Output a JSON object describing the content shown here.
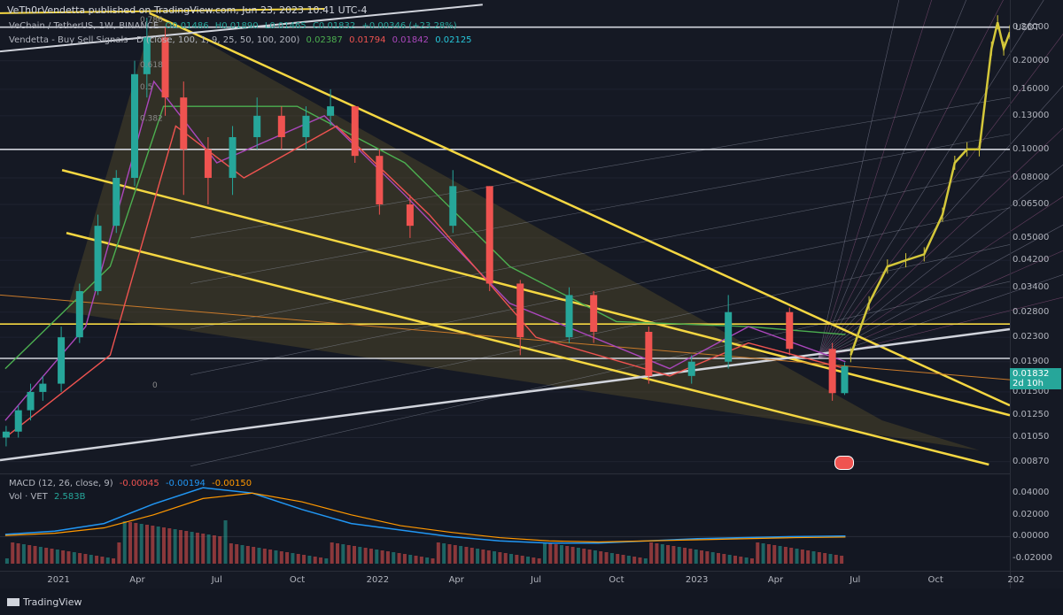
{
  "header": {
    "published_line": "VeTh0rVendetta published on TradingView.com, Jun 23, 2023 10:41 UTC-4"
  },
  "legend": {
    "symbol": "VeChain / TetherUS, 1W, BINANCE",
    "open": "O0.01486",
    "high": "H0.01890",
    "low": "L0.01465",
    "close": "C0.01832",
    "change": "+0.00346 (+23.28%)",
    "indicator_name": "Vendetta - Buy Sell Signals · D (close, 100, 1, 9, 25, 50, 100, 200)",
    "indicator_values": [
      "0.02387",
      "0.01794",
      "0.01842",
      "0.02125"
    ],
    "macd_name": "MACD (12, 26, close, 9)",
    "macd_values": [
      "-0.00045",
      "-0.00194",
      "-0.00150"
    ],
    "vol_name": "Vol · VET",
    "vol_value": "2.583B"
  },
  "axis": {
    "currency": "USDT",
    "price_ticks": [
      "0.26000",
      "0.20000",
      "0.16000",
      "0.13000",
      "0.10000",
      "0.08000",
      "0.06500",
      "0.05000",
      "0.04200",
      "0.03400",
      "0.02800",
      "0.02300",
      "0.01900",
      "0.01500",
      "0.01250",
      "0.01050",
      "0.00870"
    ],
    "current_price": "0.01832",
    "countdown": "2d 10h",
    "macd_ticks": [
      "0.04000",
      "0.02000",
      "0.00000",
      "-0.02000"
    ],
    "date_ticks": [
      "2021",
      "Apr",
      "Jul",
      "Oct",
      "2022",
      "Apr",
      "Jul",
      "Oct",
      "2023",
      "Apr",
      "Jul",
      "Oct",
      "202"
    ]
  },
  "fib_labels": [
    "0.786",
    "0.618",
    "0.5",
    "0.382",
    "0"
  ],
  "footer": {
    "brand": "TradingView"
  },
  "colors": {
    "background": "#151924",
    "up": "#26a69a",
    "down": "#ef5350",
    "channel": "#f5d742",
    "projection": "#d4c73a",
    "macd": "#2196f3",
    "signal": "#ff9800"
  },
  "chart_data": {
    "type": "candlestick",
    "symbol": "VET/USDT",
    "interval": "1W",
    "y_scale": "log",
    "ylim": [
      0.0085,
      0.3
    ],
    "xlim": [
      "2020-10-26",
      "2023-12-25"
    ],
    "candles": [
      {
        "t": "2020-11-02",
        "o": 0.0105,
        "h": 0.0115,
        "l": 0.0098,
        "c": 0.011
      },
      {
        "t": "2020-11-16",
        "o": 0.011,
        "h": 0.0135,
        "l": 0.0105,
        "c": 0.013
      },
      {
        "t": "2020-11-30",
        "o": 0.013,
        "h": 0.016,
        "l": 0.012,
        "c": 0.015
      },
      {
        "t": "2020-12-14",
        "o": 0.015,
        "h": 0.017,
        "l": 0.014,
        "c": 0.016
      },
      {
        "t": "2021-01-04",
        "o": 0.016,
        "h": 0.025,
        "l": 0.015,
        "c": 0.023
      },
      {
        "t": "2021-01-25",
        "o": 0.023,
        "h": 0.035,
        "l": 0.022,
        "c": 0.033
      },
      {
        "t": "2021-02-15",
        "o": 0.033,
        "h": 0.06,
        "l": 0.032,
        "c": 0.055
      },
      {
        "t": "2021-03-08",
        "o": 0.055,
        "h": 0.085,
        "l": 0.052,
        "c": 0.08
      },
      {
        "t": "2021-03-29",
        "o": 0.08,
        "h": 0.2,
        "l": 0.075,
        "c": 0.18
      },
      {
        "t": "2021-04-12",
        "o": 0.18,
        "h": 0.28,
        "l": 0.15,
        "c": 0.24
      },
      {
        "t": "2021-05-03",
        "o": 0.24,
        "h": 0.26,
        "l": 0.13,
        "c": 0.15
      },
      {
        "t": "2021-05-24",
        "o": 0.15,
        "h": 0.17,
        "l": 0.07,
        "c": 0.1
      },
      {
        "t": "2021-06-21",
        "o": 0.1,
        "h": 0.11,
        "l": 0.065,
        "c": 0.08
      },
      {
        "t": "2021-07-19",
        "o": 0.08,
        "h": 0.12,
        "l": 0.07,
        "c": 0.11
      },
      {
        "t": "2021-08-16",
        "o": 0.11,
        "h": 0.15,
        "l": 0.1,
        "c": 0.13
      },
      {
        "t": "2021-09-13",
        "o": 0.13,
        "h": 0.14,
        "l": 0.1,
        "c": 0.11
      },
      {
        "t": "2021-10-11",
        "o": 0.11,
        "h": 0.14,
        "l": 0.1,
        "c": 0.13
      },
      {
        "t": "2021-11-08",
        "o": 0.13,
        "h": 0.16,
        "l": 0.12,
        "c": 0.14
      },
      {
        "t": "2021-12-06",
        "o": 0.14,
        "h": 0.14,
        "l": 0.09,
        "c": 0.095
      },
      {
        "t": "2022-01-03",
        "o": 0.095,
        "h": 0.1,
        "l": 0.06,
        "c": 0.065
      },
      {
        "t": "2022-02-07",
        "o": 0.065,
        "h": 0.07,
        "l": 0.05,
        "c": 0.055
      },
      {
        "t": "2022-03-28",
        "o": 0.055,
        "h": 0.085,
        "l": 0.052,
        "c": 0.075
      },
      {
        "t": "2022-05-09",
        "o": 0.075,
        "h": 0.075,
        "l": 0.033,
        "c": 0.035
      },
      {
        "t": "2022-06-13",
        "o": 0.035,
        "h": 0.036,
        "l": 0.02,
        "c": 0.023
      },
      {
        "t": "2022-08-08",
        "o": 0.023,
        "h": 0.034,
        "l": 0.022,
        "c": 0.032
      },
      {
        "t": "2022-09-05",
        "o": 0.032,
        "h": 0.033,
        "l": 0.022,
        "c": 0.024
      },
      {
        "t": "2022-11-07",
        "o": 0.024,
        "h": 0.025,
        "l": 0.016,
        "c": 0.017
      },
      {
        "t": "2022-12-26",
        "o": 0.017,
        "h": 0.02,
        "l": 0.016,
        "c": 0.019
      },
      {
        "t": "2023-02-06",
        "o": 0.019,
        "h": 0.032,
        "l": 0.018,
        "c": 0.028
      },
      {
        "t": "2023-04-17",
        "o": 0.028,
        "h": 0.029,
        "l": 0.02,
        "c": 0.021
      },
      {
        "t": "2023-06-05",
        "o": 0.021,
        "h": 0.022,
        "l": 0.014,
        "c": 0.01486
      },
      {
        "t": "2023-06-19",
        "o": 0.01486,
        "h": 0.0189,
        "l": 0.01465,
        "c": 0.01832
      }
    ],
    "projection": [
      {
        "t": "2023-06-26",
        "v": 0.02
      },
      {
        "t": "2023-07-17",
        "v": 0.03
      },
      {
        "t": "2023-08-07",
        "v": 0.04
      },
      {
        "t": "2023-08-28",
        "v": 0.042
      },
      {
        "t": "2023-09-18",
        "v": 0.044
      },
      {
        "t": "2023-10-09",
        "v": 0.06
      },
      {
        "t": "2023-10-23",
        "v": 0.09
      },
      {
        "t": "2023-11-06",
        "v": 0.1
      },
      {
        "t": "2023-11-20",
        "v": 0.1
      },
      {
        "t": "2023-12-04",
        "v": 0.22
      },
      {
        "t": "2023-12-11",
        "v": 0.27
      },
      {
        "t": "2023-12-18",
        "v": 0.22
      },
      {
        "t": "2023-12-25",
        "v": 0.25
      }
    ],
    "horizontal_levels": [
      0.26,
      0.1,
      0.0255,
      0.0195
    ],
    "macd": {
      "ylim": [
        -0.025,
        0.05
      ],
      "values": [
        0.002,
        0.005,
        0.012,
        0.03,
        0.045,
        0.04,
        0.025,
        0.012,
        0.006,
        0.0,
        -0.004,
        -0.006,
        -0.006,
        -0.004,
        -0.002,
        -0.001,
        0.0,
        0.0005
      ],
      "signal": [
        0.001,
        0.003,
        0.008,
        0.02,
        0.035,
        0.04,
        0.032,
        0.02,
        0.01,
        0.004,
        -0.001,
        -0.004,
        -0.005,
        -0.004,
        -0.003,
        -0.002,
        -0.001,
        -0.0005
      ]
    }
  }
}
